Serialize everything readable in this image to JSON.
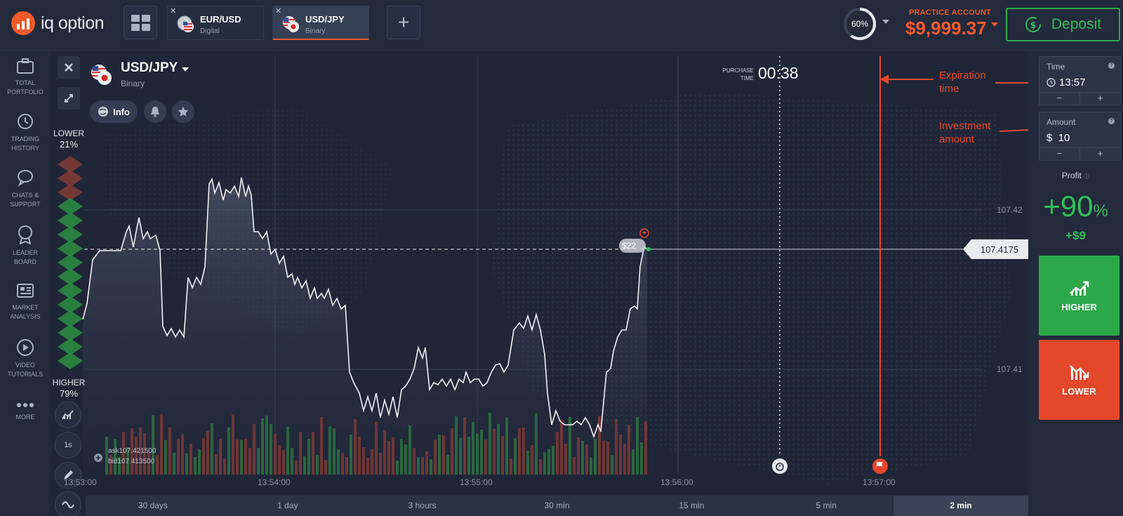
{
  "logo": {
    "text": "iq option"
  },
  "tabs": [
    {
      "pair": "EUR/USD",
      "kind": "Digital"
    },
    {
      "pair": "USD/JPY",
      "kind": "Binary"
    }
  ],
  "gauge": {
    "label": "60%",
    "value": 0.6
  },
  "account": {
    "label": "PRACTICE ACCOUNT",
    "balance": "$9,999.37"
  },
  "deposit": {
    "label": "Deposit"
  },
  "sidebar": {
    "items": [
      {
        "label1": "TOTAL",
        "label2": "PORTFOLIO",
        "icon": "briefcase-icon"
      },
      {
        "label1": "TRADING",
        "label2": "HISTORY",
        "icon": "history-icon"
      },
      {
        "label1": "CHATS &",
        "label2": "SUPPORT",
        "icon": "chat-icon"
      },
      {
        "label1": "LEADER",
        "label2": "BOARD",
        "icon": "medal-icon"
      },
      {
        "label1": "MARKET",
        "label2": "ANALYSIS",
        "icon": "news-icon"
      },
      {
        "label1": "VIDEO",
        "label2": "TUTORIALS",
        "icon": "play-icon"
      },
      {
        "label1": "MORE",
        "label2": "",
        "icon": "dots-icon"
      }
    ]
  },
  "asset": {
    "name": "USD/JPY",
    "kind": "Binary",
    "info_label": "Info"
  },
  "purchase": {
    "label1": "PURCHASE",
    "label2": "TIME",
    "time": "00:38"
  },
  "sentiment": {
    "lower_label": "LOWER",
    "lower_pct": "21%",
    "higher_label": "HIGHER",
    "higher_pct": "79%"
  },
  "tools": {
    "interval": "1s"
  },
  "price": {
    "current": "107.4175",
    "axis": [
      "107.42",
      "107.41"
    ],
    "ask": "ask107.421500",
    "bid": "bid107.413500",
    "deal_amount": "$22"
  },
  "annotations": {
    "expiration": [
      "Expiration",
      "time"
    ],
    "investment": [
      "Investment",
      "amount"
    ]
  },
  "time_axis": [
    "13:53:00",
    "13:54:00",
    "13:55:00",
    "13:56:00",
    "13:57:00"
  ],
  "periods": {
    "options": [
      "30 days",
      "1 day",
      "3 hours",
      "30 min",
      "15 min",
      "5 min",
      "2 min"
    ],
    "selected": "2 min"
  },
  "order": {
    "time_label": "Time",
    "time_value": "13:57",
    "amount_label": "Amount",
    "amount_currency": "$",
    "amount_value": "10",
    "minus": "−",
    "plus": "+",
    "profit_label": "Profit",
    "profit_pct": "+90",
    "profit_pct_sign": "%",
    "profit_amount": "+$9",
    "higher_label": "HIGHER",
    "lower_label": "LOWER"
  },
  "colors": {
    "accent": "#f05a28",
    "up": "#2ca84a",
    "down": "#e3482b"
  }
}
